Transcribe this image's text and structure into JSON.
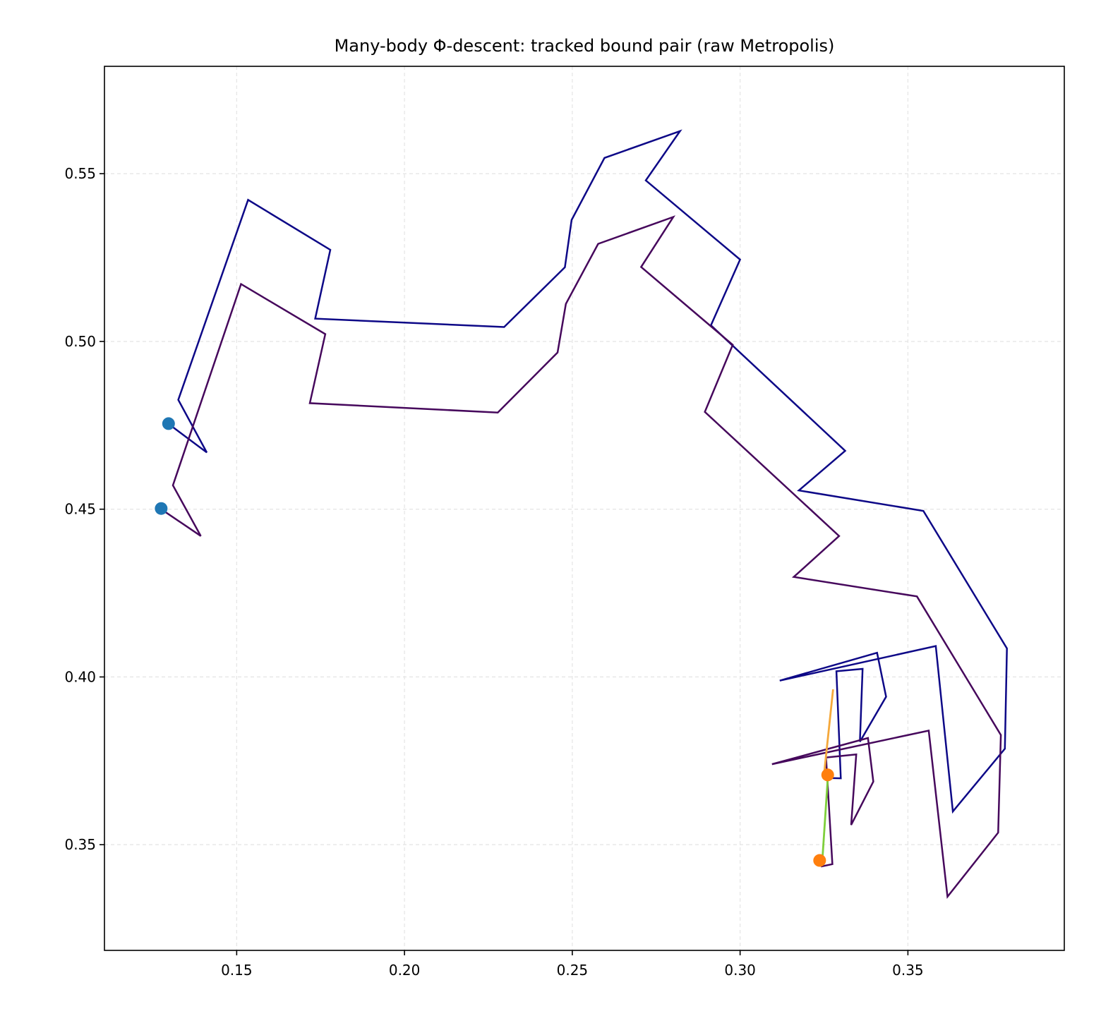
{
  "chart_data": {
    "type": "line",
    "title": "Many-body Φ-descent: tracked bound pair (raw Metropolis)",
    "xlabel": "",
    "ylabel": "",
    "xlim": [
      0.1106,
      0.3966
    ],
    "ylim": [
      0.3185,
      0.582
    ],
    "grid": true,
    "x_ticks": [
      0.15,
      0.2,
      0.25,
      0.3,
      0.35
    ],
    "x_tick_labels": [
      "0.15",
      "0.20",
      "0.25",
      "0.30",
      "0.35"
    ],
    "y_ticks": [
      0.35,
      0.4,
      0.45,
      0.5,
      0.55
    ],
    "y_tick_labels": [
      "0.35",
      "0.40",
      "0.45",
      "0.50",
      "0.55"
    ],
    "series": [
      {
        "color": "#0d0887",
        "points": [
          [
            0.1296,
            0.4755
          ],
          [
            0.1411,
            0.4669
          ],
          [
            0.1326,
            0.4826
          ],
          [
            0.1534,
            0.5422
          ],
          [
            0.1779,
            0.5273
          ],
          [
            0.1734,
            0.5068
          ],
          [
            0.2297,
            0.5043
          ],
          [
            0.2478,
            0.5221
          ],
          [
            0.2498,
            0.5362
          ],
          [
            0.2596,
            0.5547
          ],
          [
            0.2821,
            0.5627
          ],
          [
            0.2719,
            0.548
          ],
          [
            0.3,
            0.5244
          ],
          [
            0.2913,
            0.5048
          ],
          [
            0.3313,
            0.4674
          ],
          [
            0.3175,
            0.4556
          ],
          [
            0.3546,
            0.4495
          ],
          [
            0.3795,
            0.4085
          ],
          [
            0.3789,
            0.3786
          ],
          [
            0.3634,
            0.3599
          ],
          [
            0.3583,
            0.4092
          ],
          [
            0.3118,
            0.3989
          ],
          [
            0.3408,
            0.4072
          ],
          [
            0.3435,
            0.3941
          ],
          [
            0.3357,
            0.3807
          ],
          [
            0.3365,
            0.4024
          ],
          [
            0.3287,
            0.4017
          ],
          [
            0.33,
            0.3698
          ],
          [
            0.3255,
            0.3699
          ]
        ]
      },
      {
        "color": "#46085c",
        "points": [
          [
            0.1275,
            0.45
          ],
          [
            0.1393,
            0.442
          ],
          [
            0.131,
            0.4571
          ],
          [
            0.1513,
            0.5171
          ],
          [
            0.1764,
            0.5022
          ],
          [
            0.1718,
            0.4816
          ],
          [
            0.2278,
            0.4788
          ],
          [
            0.2456,
            0.4967
          ],
          [
            0.2481,
            0.5112
          ],
          [
            0.2577,
            0.5291
          ],
          [
            0.2801,
            0.5371
          ],
          [
            0.2705,
            0.5222
          ],
          [
            0.2978,
            0.499
          ],
          [
            0.2895,
            0.479
          ],
          [
            0.3295,
            0.442
          ],
          [
            0.316,
            0.4298
          ],
          [
            0.3527,
            0.424
          ],
          [
            0.3777,
            0.3827
          ],
          [
            0.3769,
            0.3536
          ],
          [
            0.3618,
            0.3345
          ],
          [
            0.3562,
            0.384
          ],
          [
            0.3095,
            0.374
          ],
          [
            0.3381,
            0.3818
          ],
          [
            0.3397,
            0.3688
          ],
          [
            0.3331,
            0.3559
          ],
          [
            0.3346,
            0.3769
          ],
          [
            0.3256,
            0.376
          ],
          [
            0.3275,
            0.3442
          ],
          [
            0.3241,
            0.3435
          ]
        ]
      },
      {
        "color": "#f5a83b",
        "points": [
          [
            0.325,
            0.3708
          ],
          [
            0.3277,
            0.3963
          ]
        ]
      },
      {
        "color": "#7fcf3c",
        "points": [
          [
            0.3245,
            0.3452
          ],
          [
            0.3262,
            0.3708
          ]
        ]
      }
    ],
    "markers": [
      {
        "color": "#1f77b4",
        "x": 0.1297,
        "y": 0.4755
      },
      {
        "color": "#1f77b4",
        "x": 0.1275,
        "y": 0.4502
      },
      {
        "color": "#ff7f0e",
        "x": 0.3261,
        "y": 0.3708
      },
      {
        "color": "#ff7f0e",
        "x": 0.3237,
        "y": 0.3453
      }
    ]
  }
}
